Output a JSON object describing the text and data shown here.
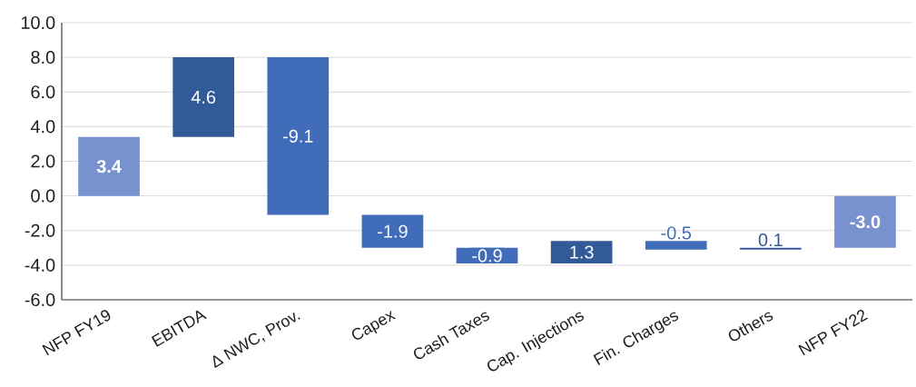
{
  "chart_data": {
    "type": "bar",
    "categories": [
      "NFP FY19",
      "EBITDA",
      "Δ NWC, Prov.",
      "Capex",
      "Cash Taxes",
      "Cap. Injections",
      "Fin. Charges",
      "Others",
      "NFP FY22"
    ],
    "values": [
      3.4,
      4.6,
      -9.1,
      -1.9,
      -0.9,
      1.3,
      -0.5,
      0.1,
      -3.0
    ],
    "base": [
      0,
      3.4,
      8.0,
      -1.1,
      -3.0,
      -3.9,
      -2.6,
      -3.1,
      0
    ],
    "colors": [
      "#7891cf",
      "#335a98",
      "#406cb9",
      "#406cb9",
      "#406cb9",
      "#335a98",
      "#406cb9",
      "#335a98",
      "#7891cf"
    ],
    "value_labels": [
      "**3.4**",
      "4.6",
      "-9.1",
      "-1.9",
      "-0.9",
      "1.3",
      "-0.5",
      "0.1",
      "**-3.0**"
    ],
    "ylim": [
      -6,
      10
    ],
    "yticks": [
      {
        "value": -6,
        "label": "-6.0"
      },
      {
        "value": -4,
        "label": "-4.0"
      },
      {
        "value": -2,
        "label": "-2.0"
      },
      {
        "value": 0,
        "label": "0.0"
      },
      {
        "value": 2,
        "label": "2.0"
      },
      {
        "value": 4,
        "label": "4.0"
      },
      {
        "value": 6,
        "label": "6.0"
      },
      {
        "value": 8,
        "label": "8.0"
      },
      {
        "value": 10,
        "label": "10.0"
      }
    ],
    "grid": "y"
  }
}
